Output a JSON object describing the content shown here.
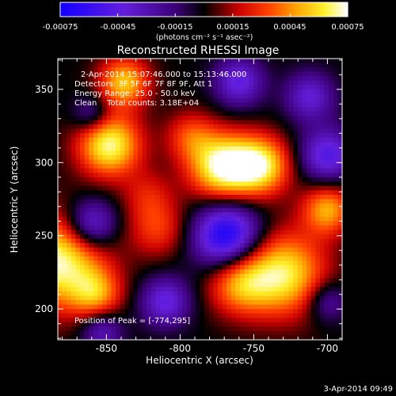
{
  "colorbar": {
    "tick_labels": [
      "-0.00075",
      "-0.00045",
      "-0.00015",
      "0.00015",
      "0.00045",
      "0.00075"
    ],
    "range": [
      -0.00075,
      0.00075
    ],
    "unit_label": "(photons cm⁻² s⁻¹ asec⁻²)"
  },
  "chart_data": {
    "type": "heatmap",
    "title": "Reconstructed RHESSI Image",
    "xlabel": "Heliocentric X (arcsec)",
    "ylabel": "Heliocentric Y (arcsec)",
    "xlim": [
      -883,
      -690
    ],
    "ylim": [
      179,
      371
    ],
    "x_ticks": [
      -850,
      -800,
      -750,
      -700
    ],
    "y_ticks": [
      200,
      250,
      300,
      350
    ],
    "x_tick_labels": [
      "-850",
      "-800",
      "-750",
      "-700"
    ],
    "y_tick_labels": [
      "200",
      "250",
      "300",
      "350"
    ],
    "info_lines": [
      "2-Apr-2014 15:07:46.000 to 15:13:46.000",
      "Detectors: 3F 5F 6F 7F 8F 9F, Att 1",
      "Energy Range: 25.0 - 50.0 keV",
      "Clean    Total counts: 3.18E+04"
    ],
    "peak_label": "Position of Peak = [-774,295]",
    "peak_position": [
      -774,
      295
    ],
    "blobs": [
      {
        "x": -771,
        "y": 297,
        "amp": 0.00075,
        "sigma": 16
      },
      {
        "x": -745,
        "y": 298,
        "amp": 0.00062,
        "sigma": 14
      },
      {
        "x": -848,
        "y": 312,
        "amp": 0.0007,
        "sigma": 15
      },
      {
        "x": -838,
        "y": 355,
        "amp": 0.00055,
        "sigma": 12
      },
      {
        "x": -883,
        "y": 232,
        "amp": 0.00072,
        "sigma": 22
      },
      {
        "x": -857,
        "y": 210,
        "amp": 0.0004,
        "sigma": 12
      },
      {
        "x": -730,
        "y": 224,
        "amp": 0.00065,
        "sigma": 20
      },
      {
        "x": -760,
        "y": 218,
        "amp": 0.00045,
        "sigma": 15
      },
      {
        "x": -700,
        "y": 268,
        "amp": 0.0005,
        "sigma": 12
      },
      {
        "x": -815,
        "y": 255,
        "amp": 0.0003,
        "sigma": 14
      },
      {
        "x": -793,
        "y": 318,
        "amp": 0.0003,
        "sigma": 12
      },
      {
        "x": -822,
        "y": 278,
        "amp": 0.0002,
        "sigma": 12
      },
      {
        "x": -768,
        "y": 250,
        "amp": -0.00075,
        "sigma": 16
      },
      {
        "x": -860,
        "y": 258,
        "amp": -0.0005,
        "sigma": 12
      },
      {
        "x": -860,
        "y": 333,
        "amp": -0.0003,
        "sigma": 9
      },
      {
        "x": -700,
        "y": 305,
        "amp": -0.0005,
        "sigma": 13
      },
      {
        "x": -712,
        "y": 345,
        "amp": -0.0004,
        "sigma": 12
      },
      {
        "x": -760,
        "y": 355,
        "amp": -0.00045,
        "sigma": 12
      },
      {
        "x": -810,
        "y": 205,
        "amp": -0.00045,
        "sigma": 12
      },
      {
        "x": -853,
        "y": 185,
        "amp": -0.00035,
        "sigma": 10
      },
      {
        "x": -700,
        "y": 205,
        "amp": -0.0003,
        "sigma": 10
      }
    ]
  },
  "footer": {
    "timestamp": "3-Apr-2014 09:49"
  }
}
